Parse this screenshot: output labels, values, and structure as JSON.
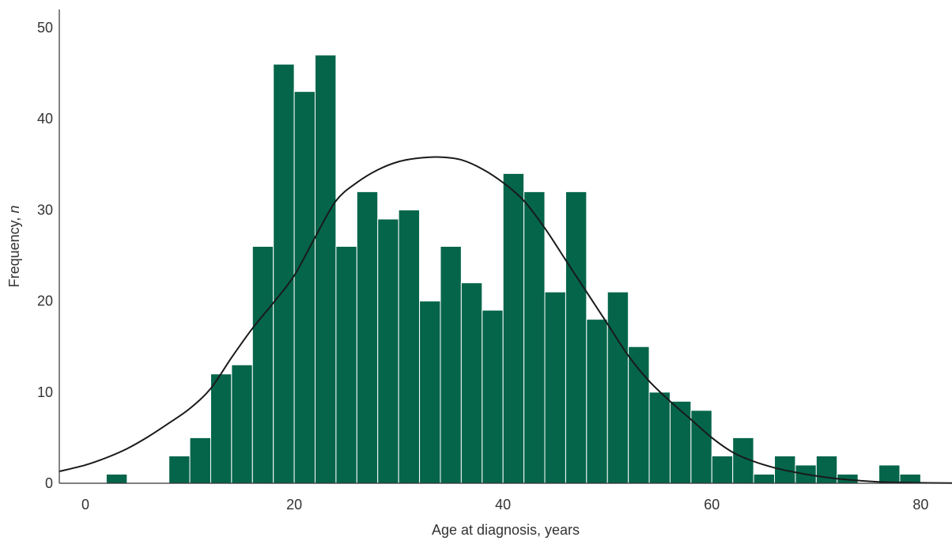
{
  "chart_data": {
    "type": "bar",
    "title": "",
    "xlabel": "Age at diagnosis, years",
    "ylabel_main": "Frequency, ",
    "ylabel_italic": "n",
    "xlim": [
      -2.5,
      83
    ],
    "ylim": [
      0,
      52
    ],
    "xticks": [
      0,
      20,
      40,
      60,
      80
    ],
    "yticks": [
      0,
      10,
      20,
      30,
      40,
      50
    ],
    "bin_width": 2,
    "bins": [
      {
        "x_start": 2,
        "x_end": 4,
        "value": 1
      },
      {
        "x_start": 8,
        "x_end": 10,
        "value": 3
      },
      {
        "x_start": 10,
        "x_end": 12,
        "value": 5
      },
      {
        "x_start": 12,
        "x_end": 14,
        "value": 12
      },
      {
        "x_start": 14,
        "x_end": 16,
        "value": 13
      },
      {
        "x_start": 16,
        "x_end": 18,
        "value": 26
      },
      {
        "x_start": 18,
        "x_end": 20,
        "value": 46
      },
      {
        "x_start": 20,
        "x_end": 22,
        "value": 43
      },
      {
        "x_start": 22,
        "x_end": 24,
        "value": 47
      },
      {
        "x_start": 24,
        "x_end": 26,
        "value": 26
      },
      {
        "x_start": 26,
        "x_end": 28,
        "value": 32
      },
      {
        "x_start": 28,
        "x_end": 30,
        "value": 29
      },
      {
        "x_start": 30,
        "x_end": 32,
        "value": 30
      },
      {
        "x_start": 32,
        "x_end": 34,
        "value": 20
      },
      {
        "x_start": 34,
        "x_end": 36,
        "value": 26
      },
      {
        "x_start": 36,
        "x_end": 38,
        "value": 22
      },
      {
        "x_start": 38,
        "x_end": 40,
        "value": 19
      },
      {
        "x_start": 40,
        "x_end": 42,
        "value": 34
      },
      {
        "x_start": 42,
        "x_end": 44,
        "value": 32
      },
      {
        "x_start": 44,
        "x_end": 46,
        "value": 21
      },
      {
        "x_start": 46,
        "x_end": 48,
        "value": 32
      },
      {
        "x_start": 48,
        "x_end": 50,
        "value": 18
      },
      {
        "x_start": 50,
        "x_end": 52,
        "value": 21
      },
      {
        "x_start": 52,
        "x_end": 54,
        "value": 15
      },
      {
        "x_start": 54,
        "x_end": 56,
        "value": 10
      },
      {
        "x_start": 56,
        "x_end": 58,
        "value": 9
      },
      {
        "x_start": 58,
        "x_end": 60,
        "value": 8
      },
      {
        "x_start": 60,
        "x_end": 62,
        "value": 3
      },
      {
        "x_start": 62,
        "x_end": 64,
        "value": 5
      },
      {
        "x_start": 64,
        "x_end": 66,
        "value": 1
      },
      {
        "x_start": 66,
        "x_end": 68,
        "value": 3
      },
      {
        "x_start": 68,
        "x_end": 70,
        "value": 2
      },
      {
        "x_start": 70,
        "x_end": 72,
        "value": 3
      },
      {
        "x_start": 72,
        "x_end": 74,
        "value": 1
      },
      {
        "x_start": 76,
        "x_end": 78,
        "value": 2
      },
      {
        "x_start": 78,
        "x_end": 80,
        "value": 1
      }
    ],
    "fit_curve": {
      "type": "normal-density-overlay",
      "x": [
        -2.5,
        0,
        2,
        4,
        6,
        8,
        10,
        12,
        14,
        16,
        18,
        20,
        22,
        24,
        26,
        28,
        30,
        32,
        34,
        36,
        38,
        40,
        42,
        44,
        46,
        48,
        50,
        52,
        54,
        56,
        58,
        60,
        62,
        64,
        66,
        68,
        70,
        72,
        74,
        76,
        78,
        80,
        82,
        83
      ],
      "y": [
        1.3,
        2.0,
        2.8,
        3.8,
        5.1,
        6.6,
        8.2,
        10.4,
        13.8,
        17.0,
        19.8,
        22.8,
        27.0,
        31.0,
        33.0,
        34.4,
        35.3,
        35.7,
        35.8,
        35.5,
        34.5,
        33.0,
        31.0,
        28.0,
        24.5,
        21.0,
        17.5,
        14.0,
        11.2,
        9.0,
        7.0,
        5.0,
        3.4,
        2.4,
        1.7,
        1.2,
        0.8,
        0.5,
        0.3,
        0.15,
        0.1,
        0.05,
        0.03,
        0.02
      ]
    },
    "colors": {
      "bar": "#04654a",
      "bar_edge": "#ffffff",
      "curve": "#1a1a1a",
      "axis": "#333333"
    },
    "grid": false,
    "legend": "none"
  }
}
